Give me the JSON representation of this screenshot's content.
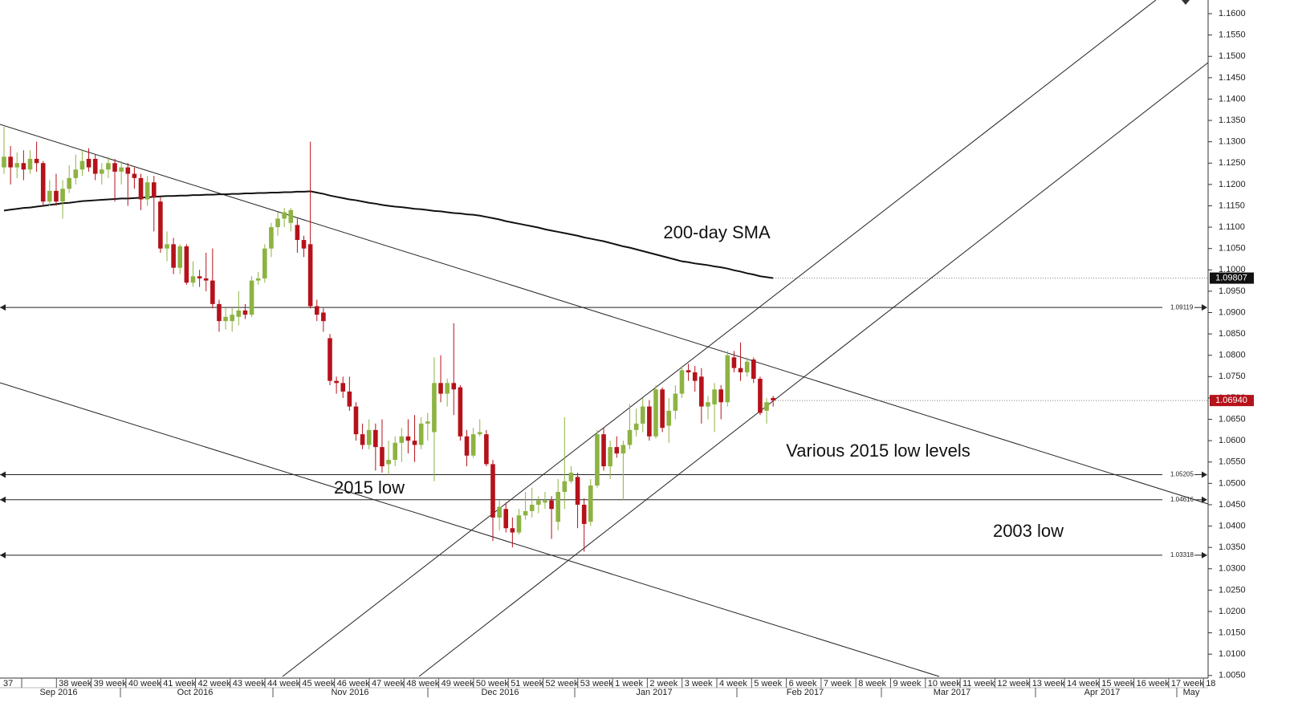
{
  "chart_data": {
    "type": "candlestick",
    "up_color": "#8db342",
    "down_color": "#b5121b",
    "ylim": [
      1.0044,
      1.1632
    ],
    "yticks": [
      {
        "value": 1.005,
        "label": "1.0050"
      },
      {
        "value": 1.01,
        "label": "1.0100"
      },
      {
        "value": 1.015,
        "label": "1.0150"
      },
      {
        "value": 1.02,
        "label": "1.0200"
      },
      {
        "value": 1.025,
        "label": "1.0250"
      },
      {
        "value": 1.03,
        "label": "1.0300"
      },
      {
        "value": 1.035,
        "label": "1.0350"
      },
      {
        "value": 1.04,
        "label": "1.0400"
      },
      {
        "value": 1.045,
        "label": "1.0450"
      },
      {
        "value": 1.05,
        "label": "1.0500"
      },
      {
        "value": 1.055,
        "label": "1.0550"
      },
      {
        "value": 1.06,
        "label": "1.0600"
      },
      {
        "value": 1.065,
        "label": "1.0650"
      },
      {
        "value": 1.07,
        "label": "1.0700"
      },
      {
        "value": 1.075,
        "label": "1.0750"
      },
      {
        "value": 1.08,
        "label": "1.0800"
      },
      {
        "value": 1.085,
        "label": "1.0850"
      },
      {
        "value": 1.09,
        "label": "1.0900"
      },
      {
        "value": 1.095,
        "label": "1.0950"
      },
      {
        "value": 1.1,
        "label": "1.1000"
      },
      {
        "value": 1.105,
        "label": "1.1050"
      },
      {
        "value": 1.11,
        "label": "1.1100"
      },
      {
        "value": 1.115,
        "label": "1.1150"
      },
      {
        "value": 1.12,
        "label": "1.1200"
      },
      {
        "value": 1.125,
        "label": "1.1250"
      },
      {
        "value": 1.13,
        "label": "1.1300"
      },
      {
        "value": 1.135,
        "label": "1.1350"
      },
      {
        "value": 1.14,
        "label": "1.1400"
      },
      {
        "value": 1.145,
        "label": "1.1450"
      },
      {
        "value": 1.15,
        "label": "1.1500"
      },
      {
        "value": 1.155,
        "label": "1.1550"
      },
      {
        "value": 1.16,
        "label": "1.1600"
      }
    ],
    "week_labels": [
      "37",
      "38 week",
      "39 week",
      "40 week",
      "41 week",
      "42 week",
      "43 week",
      "44 week",
      "45 week",
      "46 week",
      "47 week",
      "48 week",
      "49 week",
      "50 week",
      "51 week",
      "52 week",
      "53 week",
      "1 week",
      "2 week",
      "3 week",
      "4 week",
      "5 week",
      "6 week",
      "7 week",
      "8 week",
      "9 week",
      "10 week",
      "11 week",
      "12 week",
      "13 week",
      "14 week",
      "15 week",
      "16 week",
      "17 week",
      "18"
    ],
    "month_labels": [
      "Sep 2016",
      "Oct 2016",
      "Nov 2016",
      "Dec 2016",
      "Jan 2017",
      "Feb 2017",
      "Mar 2017",
      "Apr 2017",
      "May"
    ],
    "candles": {
      "open": [
        1.124,
        1.1265,
        1.124,
        1.125,
        1.1235,
        1.126,
        1.125,
        1.116,
        1.1185,
        1.116,
        1.119,
        1.1215,
        1.1235,
        1.126,
        1.126,
        1.1225,
        1.1235,
        1.125,
        1.123,
        1.124,
        1.1225,
        1.1215,
        1.1165,
        1.1205,
        1.116,
        1.105,
        1.106,
        1.1005,
        1.1055,
        1.097,
        1.0985,
        1.098,
        1.0975,
        1.092,
        1.088,
        1.088,
        1.089,
        1.0905,
        1.0895,
        1.0975,
        1.098,
        1.105,
        1.11,
        1.112,
        1.111,
        1.1105,
        1.107,
        1.106,
        1.0915,
        1.09,
        1.084,
        1.074,
        1.0735,
        1.0715,
        1.068,
        1.0615,
        1.059,
        1.0625,
        1.0585,
        1.0545,
        1.0555,
        1.0595,
        1.061,
        1.06,
        1.059,
        1.064,
        1.062,
        1.0735,
        1.071,
        1.0735,
        1.0725,
        1.061,
        1.0565,
        1.0615,
        1.0615,
        1.0545,
        1.042,
        1.044,
        1.0395,
        1.0385,
        1.0425,
        1.0435,
        1.045,
        1.0455,
        1.046,
        1.041,
        1.048,
        1.0505,
        1.0515,
        1.045,
        1.041,
        1.0495,
        1.0615,
        1.054,
        1.0585,
        1.057,
        1.059,
        1.0625,
        1.064,
        1.068,
        1.061,
        1.072,
        1.0635,
        1.067,
        1.071,
        1.0765,
        1.076,
        1.075,
        1.068,
        1.0685,
        1.072,
        1.069,
        1.0795,
        1.077,
        1.076,
        1.079,
        1.0745,
        1.067,
        1.07
      ],
      "high": [
        1.1335,
        1.129,
        1.1275,
        1.128,
        1.128,
        1.13,
        1.1255,
        1.121,
        1.1225,
        1.121,
        1.1245,
        1.127,
        1.128,
        1.1285,
        1.127,
        1.125,
        1.1265,
        1.126,
        1.1255,
        1.125,
        1.124,
        1.1225,
        1.122,
        1.122,
        1.117,
        1.109,
        1.1075,
        1.106,
        1.106,
        1.102,
        1.1,
        1.104,
        1.105,
        1.093,
        1.091,
        1.091,
        1.095,
        1.092,
        1.0985,
        1.0995,
        1.106,
        1.111,
        1.1135,
        1.1145,
        1.1145,
        1.112,
        1.108,
        1.13,
        1.093,
        1.091,
        1.085,
        1.075,
        1.075,
        1.075,
        1.069,
        1.064,
        1.065,
        1.064,
        1.065,
        1.06,
        1.061,
        1.063,
        1.065,
        1.066,
        1.0655,
        1.0665,
        1.0795,
        1.08,
        1.0745,
        1.0875,
        1.073,
        1.0625,
        1.063,
        1.065,
        1.0625,
        1.0555,
        1.046,
        1.0455,
        1.042,
        1.044,
        1.048,
        1.049,
        1.047,
        1.048,
        1.047,
        1.051,
        1.0655,
        1.054,
        1.0525,
        1.0465,
        1.051,
        1.0625,
        1.063,
        1.06,
        1.061,
        1.06,
        1.0685,
        1.0675,
        1.07,
        1.0695,
        1.073,
        1.0725,
        1.07,
        1.073,
        1.0775,
        1.078,
        1.0775,
        1.077,
        1.0705,
        1.0735,
        1.073,
        1.081,
        1.081,
        1.083,
        1.0795,
        1.0795,
        1.075,
        1.07,
        1.0705
      ],
      "low": [
        1.1225,
        1.12,
        1.1215,
        1.121,
        1.1225,
        1.123,
        1.115,
        1.115,
        1.115,
        1.112,
        1.118,
        1.12,
        1.122,
        1.123,
        1.121,
        1.12,
        1.1215,
        1.116,
        1.12,
        1.115,
        1.119,
        1.114,
        1.115,
        1.109,
        1.104,
        1.102,
        1.099,
        1.099,
        1.0965,
        1.096,
        1.096,
        1.095,
        1.091,
        1.0855,
        1.086,
        1.0855,
        1.087,
        1.0885,
        1.089,
        1.0965,
        1.097,
        1.103,
        1.108,
        1.11,
        1.109,
        1.104,
        1.103,
        1.091,
        1.088,
        1.0855,
        1.073,
        1.071,
        1.07,
        1.067,
        1.06,
        1.058,
        1.058,
        1.053,
        1.0525,
        1.052,
        1.054,
        1.055,
        1.057,
        1.055,
        1.058,
        1.06,
        1.0505,
        1.069,
        1.068,
        1.066,
        1.06,
        1.054,
        1.056,
        1.061,
        1.054,
        1.0365,
        1.039,
        1.0385,
        1.035,
        1.038,
        1.0415,
        1.042,
        1.043,
        1.044,
        1.037,
        1.039,
        1.044,
        1.05,
        1.0395,
        1.034,
        1.04,
        1.049,
        1.053,
        1.051,
        1.056,
        1.046,
        1.058,
        1.061,
        1.062,
        1.06,
        1.0605,
        1.062,
        1.0595,
        1.065,
        1.07,
        1.074,
        1.0715,
        1.064,
        1.065,
        1.062,
        1.065,
        1.068,
        1.076,
        1.074,
        1.075,
        1.0735,
        1.066,
        1.064,
        1.068
      ],
      "close": [
        1.1265,
        1.124,
        1.125,
        1.1235,
        1.126,
        1.125,
        1.116,
        1.1185,
        1.116,
        1.119,
        1.1215,
        1.1235,
        1.1255,
        1.124,
        1.1225,
        1.1235,
        1.125,
        1.123,
        1.124,
        1.1225,
        1.1215,
        1.1165,
        1.1205,
        1.117,
        1.105,
        1.106,
        1.1005,
        1.1055,
        1.097,
        1.0985,
        1.098,
        1.0975,
        1.092,
        1.088,
        1.089,
        1.0895,
        1.0905,
        1.0895,
        1.0975,
        1.098,
        1.105,
        1.11,
        1.112,
        1.1135,
        1.114,
        1.107,
        1.105,
        1.0915,
        1.0895,
        1.088,
        1.074,
        1.0735,
        1.0715,
        1.068,
        1.0615,
        1.059,
        1.0625,
        1.0585,
        1.054,
        1.0555,
        1.0595,
        1.061,
        1.06,
        1.059,
        1.064,
        1.0645,
        1.0735,
        1.071,
        1.0735,
        1.072,
        1.061,
        1.0565,
        1.0615,
        1.062,
        1.0545,
        1.042,
        1.0445,
        1.0395,
        1.0385,
        1.0425,
        1.0435,
        1.045,
        1.046,
        1.046,
        1.044,
        1.048,
        1.0505,
        1.0525,
        1.045,
        1.0405,
        1.0495,
        1.0615,
        1.054,
        1.0585,
        1.057,
        1.059,
        1.0625,
        1.064,
        1.068,
        1.061,
        1.072,
        1.063,
        1.067,
        1.071,
        1.0765,
        1.076,
        1.074,
        1.068,
        1.069,
        1.072,
        1.069,
        1.08,
        1.077,
        1.076,
        1.0785,
        1.0745,
        1.0665,
        1.069,
        1.0694
      ]
    },
    "sma": {
      "color": "#111111",
      "values": [
        1.1139,
        1.1141,
        1.1143,
        1.1145,
        1.1146,
        1.1148,
        1.115,
        1.1152,
        1.1154,
        1.1156,
        1.1157,
        1.1159,
        1.1161,
        1.1162,
        1.1163,
        1.1164,
        1.1165,
        1.1166,
        1.1167,
        1.1167,
        1.1168,
        1.1169,
        1.117,
        1.1171,
        1.1172,
        1.1173,
        1.1173,
        1.1174,
        1.1174,
        1.1175,
        1.1175,
        1.1176,
        1.1176,
        1.1177,
        1.1177,
        1.1178,
        1.1178,
        1.1179,
        1.1179,
        1.118,
        1.118,
        1.1181,
        1.1181,
        1.1182,
        1.1182,
        1.1183,
        1.1183,
        1.1184,
        1.1181,
        1.1178,
        1.1174,
        1.1171,
        1.1168,
        1.1165,
        1.1163,
        1.116,
        1.1157,
        1.1155,
        1.1152,
        1.115,
        1.1148,
        1.1147,
        1.1145,
        1.1143,
        1.1142,
        1.114,
        1.1138,
        1.1137,
        1.1135,
        1.1133,
        1.1132,
        1.113,
        1.1129,
        1.1127,
        1.1124,
        1.1121,
        1.1118,
        1.1114,
        1.1111,
        1.1108,
        1.1105,
        1.1102,
        1.1099,
        1.1095,
        1.1092,
        1.1089,
        1.1086,
        1.1083,
        1.108,
        1.1076,
        1.1073,
        1.107,
        1.1067,
        1.1063,
        1.1059,
        1.1055,
        1.1052,
        1.1048,
        1.1044,
        1.104,
        1.1036,
        1.1032,
        1.1028,
        1.1024,
        1.102,
        1.1018,
        1.1015,
        1.1013,
        1.1011,
        1.1008,
        1.1006,
        1.1003,
        1.0999,
        1.0996,
        1.0992,
        1.0989,
        1.0985,
        1.0983,
        1.09807
      ]
    },
    "sma_last": {
      "value": 1.09807,
      "label": "1.09807"
    },
    "last_price": {
      "value": 1.0694,
      "label": "1.06940"
    },
    "levels": [
      {
        "value": 1.09119,
        "label": "1.09119"
      },
      {
        "value": 1.05205,
        "label": "1.05205"
      },
      {
        "value": 1.04616,
        "label": "1.04616"
      },
      {
        "value": 1.03318,
        "label": "1.03318"
      }
    ],
    "annotations": [
      "200-day SMA",
      "Various 2015 low levels",
      "2015 low",
      "2003 low"
    ]
  }
}
